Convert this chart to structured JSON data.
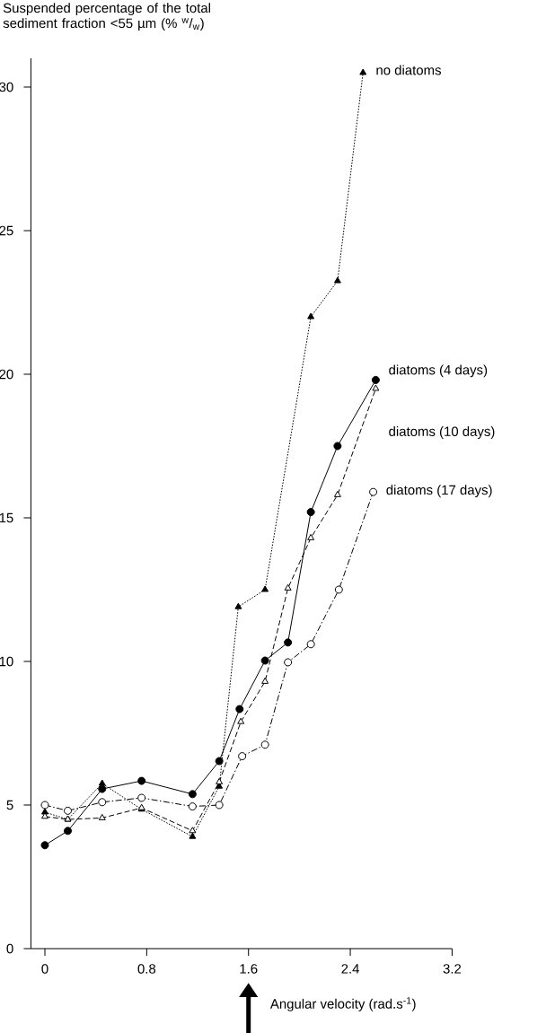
{
  "chart_data": {
    "type": "line",
    "ylabel": "Suspended percentage of the total sediment fraction <55 µm (% $^{w}$/$_{w}$)",
    "xlabel": "Angular velocity (rad.s$^{-1}$)",
    "xlim": [
      -0.11,
      3.2
    ],
    "xticks": [
      0,
      0.8,
      1.6,
      2.4,
      3.2
    ],
    "ylim": [
      0,
      31
    ],
    "yticks": [
      0,
      5,
      10,
      15,
      20,
      25,
      30
    ],
    "legend": false,
    "grid": false,
    "series": [
      {
        "name": "no diatoms",
        "color": "#000000",
        "marker": "triangle",
        "line_style": "dotted",
        "x": [
          0,
          0.18,
          0.45,
          0.76,
          1.16,
          1.37,
          1.52,
          1.73,
          2.09,
          2.3,
          2.5
        ],
        "values": [
          4.75,
          4.5,
          5.75,
          4.85,
          3.9,
          5.65,
          11.9,
          12.5,
          22.0,
          23.25,
          30.5
        ]
      },
      {
        "name": "diatoms (4 days)",
        "color": "#000000",
        "marker": "circle",
        "line_style": "solid",
        "x": [
          0,
          0.18,
          0.45,
          0.76,
          1.16,
          1.37,
          1.53,
          1.73,
          1.91,
          2.09,
          2.3,
          2.6
        ],
        "values": [
          3.6,
          4.1,
          5.56,
          5.84,
          5.38,
          6.53,
          8.34,
          10.03,
          10.66,
          15.2,
          17.5,
          19.8
        ]
      },
      {
        "name": "diatoms (10 days)",
        "color": "#000000",
        "marker": "triangle",
        "line_style": "dashed",
        "x": [
          0,
          0.18,
          0.45,
          0.76,
          1.16,
          1.37,
          1.54,
          1.73,
          1.91,
          2.09,
          2.3,
          2.6
        ],
        "values": [
          4.6,
          4.5,
          4.55,
          4.9,
          4.1,
          5.8,
          7.9,
          9.3,
          12.55,
          14.3,
          15.8,
          19.5
        ]
      },
      {
        "name": "diatoms (17 days)",
        "color": "#000000",
        "marker": "circle",
        "line_style": "dashdot",
        "x": [
          0,
          0.18,
          0.45,
          0.76,
          1.16,
          1.37,
          1.55,
          1.73,
          1.91,
          2.09,
          2.31,
          2.58
        ],
        "values": [
          5.0,
          4.8,
          5.1,
          5.25,
          4.95,
          5.0,
          6.7,
          7.1,
          9.97,
          10.6,
          12.5,
          15.9
        ]
      }
    ]
  }
}
